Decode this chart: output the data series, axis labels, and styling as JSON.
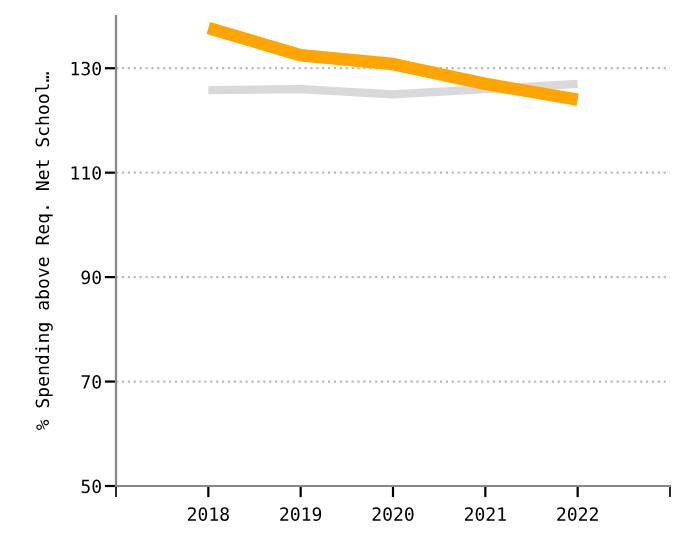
{
  "chart_data": {
    "type": "line",
    "ylabel": "% Spending above Req. Net School…",
    "categories": [
      "2018",
      "2019",
      "2020",
      "2021",
      "2022"
    ],
    "series": [
      {
        "color": "#d9d9d9",
        "values": [
          125.8,
          126,
          125,
          126,
          127
        ]
      },
      {
        "color": "#ffa500",
        "values": [
          137.7,
          132.5,
          130.8,
          127,
          124
        ]
      }
    ],
    "ylim": [
      50,
      140
    ],
    "yticks": [
      50,
      70,
      90,
      110,
      130
    ],
    "grid": "y",
    "legend": false,
    "marker": "none",
    "line_style": "solid"
  }
}
